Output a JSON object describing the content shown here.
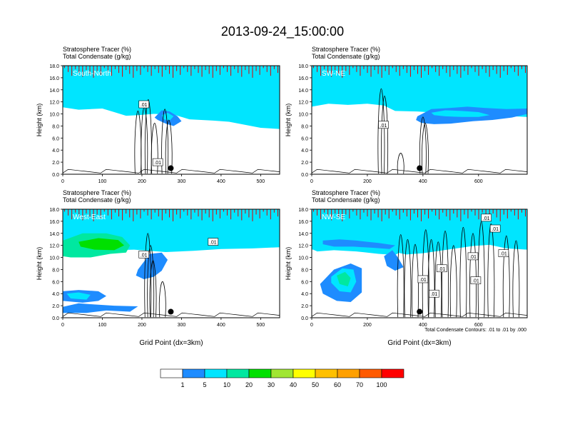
{
  "figure": {
    "title": "2013-09-24_15:00:00",
    "footnote": "Total Condensate Contours: .01 to .01 by .000",
    "colorbar": {
      "colors": [
        "#ffffff",
        "#1e8cff",
        "#00e5ff",
        "#00e8a0",
        "#00e000",
        "#a0e632",
        "#ffff00",
        "#ffc000",
        "#ffa000",
        "#ff5a00",
        "#ff0000"
      ],
      "labels": [
        "1",
        "5",
        "10",
        "20",
        "30",
        "40",
        "50",
        "60",
        "70",
        "100"
      ]
    }
  },
  "chart_data": [
    {
      "type": "heatmap",
      "panel_label": "South-North",
      "subtitle_line1": "Stratosphere Tracer   (%)",
      "subtitle_line2": "Total Condensate   (g/kg)",
      "ylabel": "Height (km)",
      "xlabel": "",
      "xlim": [
        0,
        548
      ],
      "ylim": [
        0,
        18
      ],
      "xticks": [
        "0",
        "100",
        "200",
        "300",
        "400",
        "500"
      ],
      "xtick_values": [
        0,
        100,
        200,
        300,
        400,
        500
      ],
      "yticks": [
        "0.0",
        "2.0",
        "4.0",
        "6.0",
        "8.0",
        "10.0",
        "12.0",
        "14.0",
        "16.0",
        "18.0"
      ],
      "tropopause_profile": {
        "x": [
          0,
          40,
          100,
          130,
          160,
          190,
          230,
          280,
          320,
          380,
          420,
          460,
          500,
          548
        ],
        "z": [
          14.2,
          13.8,
          14.0,
          13.4,
          12.8,
          12.9,
          13.1,
          13.0,
          12.2,
          12.0,
          11.8,
          11.3,
          10.8,
          10.6
        ]
      },
      "cloud_patches": [
        {
          "x": [
            235,
            250,
            270,
            290,
            300,
            280,
            260,
            240,
            232
          ],
          "z": [
            9.6,
            10.6,
            10.4,
            9.6,
            8.8,
            8.0,
            8.4,
            9.0,
            9.4
          ],
          "color": "#1e8cff"
        },
        {
          "x": [
            250,
            265,
            280,
            270,
            255
          ],
          "z": [
            9.8,
            10.2,
            9.6,
            8.9,
            9.1
          ],
          "color": "#00e5ff"
        }
      ],
      "contour_labels": [
        {
          "x": 205,
          "z": 11.6,
          "text": ".01"
        },
        {
          "x": 240,
          "z": 2.0,
          "text": ".01"
        }
      ],
      "marker": {
        "x": 273,
        "z": 1.0
      },
      "updrafts": [
        {
          "x": 190,
          "top": 10.5
        },
        {
          "x": 206,
          "top": 11.2
        },
        {
          "x": 216,
          "top": 12.4
        },
        {
          "x": 232,
          "top": 8.5
        },
        {
          "x": 258,
          "top": 10.8
        },
        {
          "x": 268,
          "top": 9.0
        }
      ]
    },
    {
      "type": "heatmap",
      "panel_label": "SW-NE",
      "subtitle_line1": "Stratosphere Tracer   (%)",
      "subtitle_line2": "Total Condensate   (g/kg)",
      "ylabel": "Height (km)",
      "xlabel": "",
      "xlim": [
        0,
        775
      ],
      "ylim": [
        0,
        18
      ],
      "xticks": [
        "0",
        "200",
        "400",
        "600"
      ],
      "xtick_values": [
        0,
        200,
        400,
        600
      ],
      "yticks": [
        "0.0",
        "2.0",
        "4.0",
        "6.0",
        "8.0",
        "10.0",
        "12.0",
        "14.0",
        "16.0",
        "18.0"
      ],
      "tropopause_profile": {
        "x": [
          0,
          60,
          130,
          200,
          260,
          300,
          380,
          450,
          520,
          600,
          680,
          775
        ],
        "z": [
          14.3,
          14.8,
          14.6,
          14.8,
          14.5,
          13.6,
          13.5,
          13.3,
          13.2,
          13.0,
          12.8,
          12.6
        ]
      },
      "cloud_patches": [
        {
          "x": [
            380,
            430,
            500,
            560,
            620,
            700,
            775,
            775,
            720,
            650,
            580,
            500,
            440,
            395,
            375
          ],
          "z": [
            9.6,
            10.8,
            11.0,
            11.2,
            11.0,
            10.8,
            10.9,
            10.0,
            9.4,
            9.0,
            8.8,
            8.4,
            8.3,
            8.5,
            9.0
          ],
          "color": "#1e8cff"
        },
        {
          "x": [
            430,
            480,
            540,
            600,
            640,
            600,
            540,
            480,
            440
          ],
          "z": [
            10.2,
            10.6,
            10.5,
            10.3,
            9.8,
            9.5,
            9.5,
            9.6,
            9.8
          ],
          "color": "#00e5ff"
        }
      ],
      "contour_labels": [
        {
          "x": 258,
          "z": 8.2,
          "text": ".01"
        }
      ],
      "marker": {
        "x": 388,
        "z": 1.0
      },
      "updrafts": [
        {
          "x": 250,
          "top": 14.2
        },
        {
          "x": 262,
          "top": 13.0
        },
        {
          "x": 320,
          "top": 3.5
        },
        {
          "x": 400,
          "top": 9.5
        },
        {
          "x": 408,
          "top": 8.5
        }
      ]
    },
    {
      "type": "heatmap",
      "panel_label": "West-East",
      "subtitle_line1": "Stratosphere Tracer   (%)",
      "subtitle_line2": "Total Condensate   (g/kg)",
      "ylabel": "Height (km)",
      "xlabel": "Grid Point (dx=3km)",
      "xlim": [
        0,
        548
      ],
      "ylim": [
        0,
        18
      ],
      "xticks": [
        "0",
        "100",
        "200",
        "300",
        "400",
        "500"
      ],
      "xtick_values": [
        0,
        100,
        200,
        300,
        400,
        500
      ],
      "yticks": [
        "0.0",
        "2.0",
        "4.0",
        "6.0",
        "8.0",
        "10.0",
        "12.0",
        "14.0",
        "16.0",
        "18.0"
      ],
      "tropopause_profile": {
        "x": [
          0,
          80,
          180,
          260,
          330,
          400,
          480,
          548
        ],
        "z": [
          14.3,
          14.2,
          14.4,
          14.0,
          14.2,
          14.5,
          14.6,
          14.8
        ]
      },
      "cloud_patches": [
        {
          "x": [
            0,
            50,
            110,
            150,
            170,
            160,
            120,
            70,
            20,
            0
          ],
          "z": [
            12.8,
            14.0,
            14.0,
            13.4,
            12.0,
            10.8,
            10.6,
            10.0,
            10.0,
            10.2
          ],
          "color": "#00e8a0"
        },
        {
          "x": [
            40,
            90,
            140,
            155,
            130,
            80,
            45
          ],
          "z": [
            12.6,
            13.2,
            12.9,
            12.0,
            11.2,
            11.3,
            11.8
          ],
          "color": "#00e000"
        },
        {
          "x": [
            190,
            220,
            250,
            265,
            250,
            230,
            205,
            185
          ],
          "z": [
            8.0,
            10.6,
            10.8,
            9.6,
            7.8,
            6.8,
            6.4,
            7.0
          ],
          "color": "#1e8cff"
        },
        {
          "x": [
            0,
            40,
            90,
            110,
            90,
            50,
            0
          ],
          "z": [
            4.4,
            4.6,
            4.4,
            3.6,
            2.8,
            2.5,
            2.8
          ],
          "color": "#1e8cff"
        },
        {
          "x": [
            10,
            40,
            70,
            60,
            20
          ],
          "z": [
            4.0,
            4.2,
            3.8,
            3.0,
            3.2
          ],
          "color": "#00e5ff"
        },
        {
          "x": [
            0,
            40,
            80,
            130,
            190,
            170,
            110,
            60,
            0
          ],
          "z": [
            1.8,
            2.4,
            2.2,
            2.0,
            1.9,
            1.0,
            1.2,
            0.8,
            0.8
          ],
          "color": "#1e8cff"
        }
      ],
      "contour_labels": [
        {
          "x": 205,
          "z": 10.5,
          "text": ".01"
        },
        {
          "x": 380,
          "z": 12.6,
          "text": ".01"
        }
      ],
      "marker": {
        "x": 273,
        "z": 1.0
      },
      "updrafts": [
        {
          "x": 215,
          "top": 14.0
        },
        {
          "x": 222,
          "top": 12.0
        },
        {
          "x": 228,
          "top": 9.5
        },
        {
          "x": 252,
          "top": 6.0
        }
      ]
    },
    {
      "type": "heatmap",
      "panel_label": "NW-SE",
      "subtitle_line1": "Stratosphere Tracer   (%)",
      "subtitle_line2": "Total Condensate   (g/kg)",
      "ylabel": "Height (km)",
      "xlabel": "Grid Point (dx=3km)",
      "xlim": [
        0,
        775
      ],
      "ylim": [
        0,
        18
      ],
      "xticks": [
        "0",
        "200",
        "400",
        "600"
      ],
      "xtick_values": [
        0,
        200,
        400,
        600
      ],
      "yticks": [
        "0.0",
        "2.0",
        "4.0",
        "6.0",
        "8.0",
        "10.0",
        "12.0",
        "14.0",
        "16.0",
        "18.0"
      ],
      "tropopause_profile": {
        "x": [
          0,
          60,
          130,
          200,
          260,
          300,
          340,
          400,
          460,
          520,
          580,
          640,
          700,
          775
        ],
        "z": [
          14.4,
          14.6,
          14.5,
          14.6,
          14.4,
          14.0,
          13.6,
          13.8,
          14.2,
          14.6,
          15.0,
          15.2,
          14.6,
          14.4
        ]
      },
      "cloud_patches": [
        {
          "x": [
            0,
            60,
            130,
            200,
            260,
            300,
            330,
            300,
            240,
            160,
            80,
            20,
            0
          ],
          "z": [
            13.6,
            13.8,
            13.6,
            13.5,
            13.3,
            12.4,
            11.2,
            10.4,
            10.6,
            11.0,
            11.2,
            11.0,
            11.4
          ],
          "color": "#00e5ff"
        },
        {
          "x": [
            40,
            100,
            160,
            200,
            240,
            300,
            280,
            220,
            150,
            80,
            40
          ],
          "z": [
            12.8,
            13.0,
            12.8,
            12.6,
            12.4,
            12.0,
            11.4,
            11.6,
            11.8,
            11.8,
            12.2
          ],
          "color": "#1e8cff"
        },
        {
          "x": [
            30,
            80,
            140,
            180,
            180,
            140,
            90,
            40
          ],
          "z": [
            5.6,
            8.0,
            9.0,
            8.2,
            4.2,
            2.6,
            2.8,
            4.0
          ],
          "color": "#1e8cff"
        },
        {
          "x": [
            70,
            110,
            150,
            160,
            140,
            100,
            70
          ],
          "z": [
            6.8,
            8.2,
            8.0,
            6.0,
            4.2,
            4.4,
            5.8
          ],
          "color": "#00e5ff"
        },
        {
          "x": [
            90,
            120,
            140,
            130,
            100
          ],
          "z": [
            7.0,
            7.6,
            6.6,
            5.2,
            5.6
          ],
          "color": "#00e8a0"
        },
        {
          "x": [
            260,
            290,
            310,
            330,
            300,
            270
          ],
          "z": [
            10.2,
            11.2,
            10.0,
            8.4,
            7.8,
            8.6
          ],
          "color": "#1e8cff"
        }
      ],
      "contour_labels": [
        {
          "x": 628,
          "z": 16.6,
          "text": ".01"
        },
        {
          "x": 468,
          "z": 8.2,
          "text": ".01"
        },
        {
          "x": 580,
          "z": 10.2,
          "text": ".01"
        },
        {
          "x": 440,
          "z": 4.0,
          "text": ".01"
        },
        {
          "x": 590,
          "z": 6.2,
          "text": ".01"
        },
        {
          "x": 660,
          "z": 14.8,
          "text": ".01"
        },
        {
          "x": 690,
          "z": 10.7,
          "text": ".01"
        },
        {
          "x": 400,
          "z": 6.4,
          "text": ".01"
        }
      ],
      "marker": {
        "x": 388,
        "z": 1.0
      },
      "updrafts": [
        {
          "x": 320,
          "top": 13.8
        },
        {
          "x": 345,
          "top": 13.0
        },
        {
          "x": 372,
          "top": 12.2
        },
        {
          "x": 410,
          "top": 14.6
        },
        {
          "x": 430,
          "top": 13.0
        },
        {
          "x": 455,
          "top": 12.6
        },
        {
          "x": 480,
          "top": 14.4
        },
        {
          "x": 510,
          "top": 12.0
        },
        {
          "x": 545,
          "top": 15.0
        },
        {
          "x": 580,
          "top": 14.0
        },
        {
          "x": 610,
          "top": 16.0
        },
        {
          "x": 645,
          "top": 15.6
        },
        {
          "x": 700,
          "top": 13.6
        },
        {
          "x": 735,
          "top": 12.8
        }
      ]
    }
  ]
}
